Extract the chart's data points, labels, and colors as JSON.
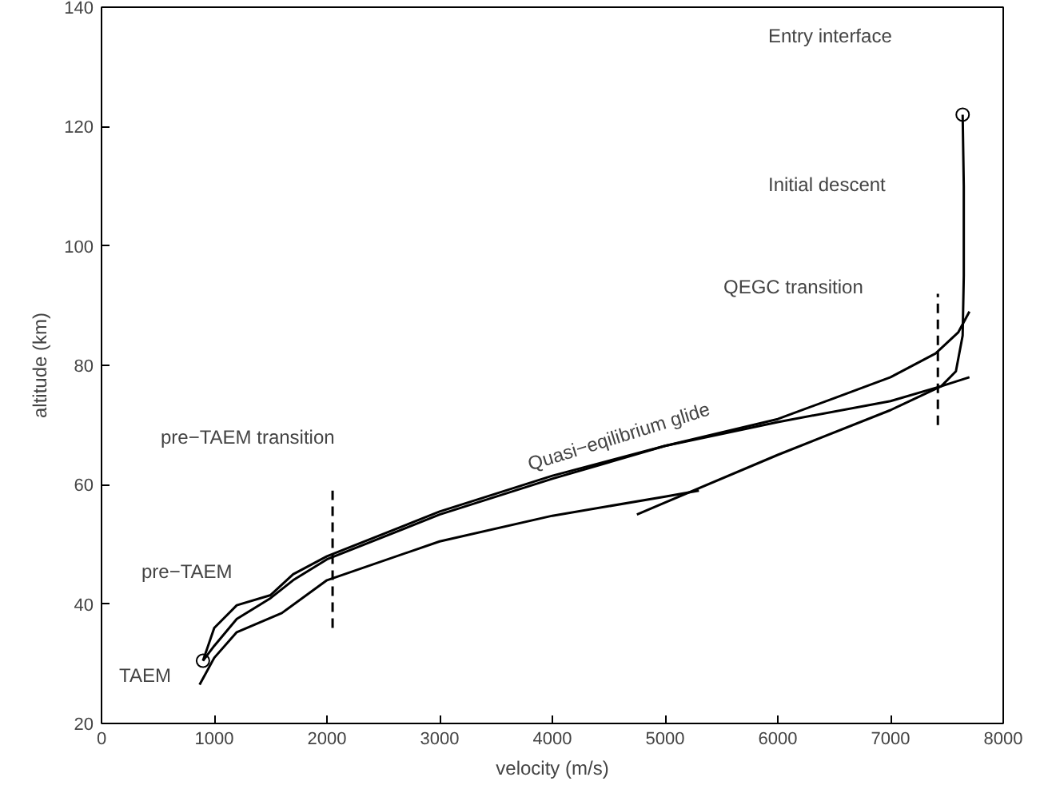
{
  "chart_data": {
    "type": "line",
    "xlabel": "velocity (m/s)",
    "ylabel": "altitude (km)",
    "xlim": [
      0,
      8000
    ],
    "ylim": [
      20,
      140
    ],
    "xticks": [
      0,
      1000,
      2000,
      3000,
      4000,
      5000,
      6000,
      7000,
      8000
    ],
    "yticks": [
      20,
      40,
      60,
      80,
      100,
      120,
      140
    ],
    "grid": false,
    "series": [
      {
        "color": "#000000",
        "x": [
          7640,
          7650,
          7650,
          7640,
          7580,
          7450,
          7000,
          6000,
          5000,
          4000,
          3000,
          2000,
          1700,
          1500,
          1200,
          1000,
          900
        ],
        "values": [
          122,
          110,
          95,
          85,
          79,
          76.5,
          74,
          70.5,
          66.5,
          61.5,
          55.5,
          48,
          45,
          41.5,
          39.8,
          36,
          30.5
        ]
      },
      {
        "color": "#000000",
        "x": [
          7700,
          7600,
          7400,
          7000,
          6500,
          6000,
          5000,
          4000,
          3000,
          2000,
          1700,
          1500,
          1200,
          1000,
          900
        ],
        "values": [
          89,
          85.5,
          82,
          78,
          74.5,
          71,
          66.5,
          61,
          55,
          47.5,
          44,
          41,
          37.5,
          33,
          30.5
        ]
      },
      {
        "color": "#000000",
        "x": [
          4750,
          5000,
          6000,
          7000,
          7450,
          7700
        ],
        "values": [
          55,
          57,
          65,
          72.5,
          76.5,
          78
        ]
      },
      {
        "color": "#000000",
        "x": [
          870,
          1000,
          1200,
          1600,
          2000,
          3000,
          4000,
          5000,
          5300
        ],
        "values": [
          26.5,
          31,
          35.3,
          38.5,
          44,
          50.5,
          54.8,
          58,
          59
        ]
      },
      {
        "color": "#000000",
        "line_style": "dashed",
        "x": [
          2050,
          2050
        ],
        "values": [
          36,
          59
        ]
      },
      {
        "color": "#000000",
        "line_style": "dashed",
        "x": [
          7420,
          7420
        ],
        "values": [
          70,
          92
        ]
      },
      {
        "type": "scatter",
        "marker": "circle",
        "color": "#000000",
        "x": [
          900,
          7640
        ],
        "values": [
          30.5,
          122
        ]
      }
    ],
    "annotations": [
      "Entry interface",
      "Initial descent",
      "QEGC transition",
      "pre−TAEM transition",
      "pre−TAEM",
      "TAEM",
      "Quasi−eqilibrium glide"
    ]
  }
}
